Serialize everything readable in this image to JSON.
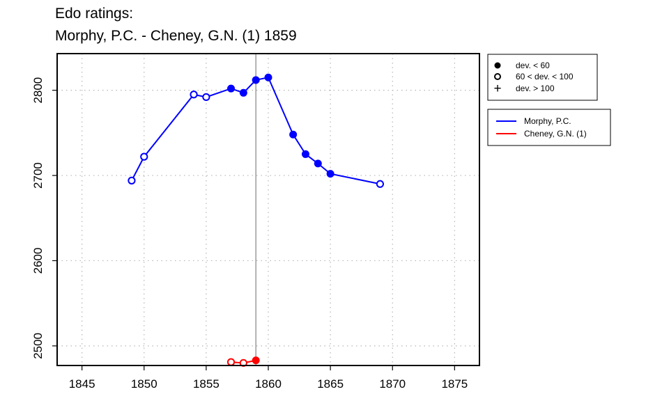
{
  "chart_data": {
    "type": "line",
    "title_lines": [
      "Edo ratings:",
      "Morphy, P.C. - Cheney, G.N. (1) 1859"
    ],
    "xlabel": "",
    "ylabel": "",
    "xlim": [
      1843,
      1877
    ],
    "ylim": [
      2477,
      2843
    ],
    "x_ticks": [
      1845,
      1850,
      1855,
      1860,
      1865,
      1870,
      1875
    ],
    "y_ticks": [
      2500,
      2600,
      2700,
      2800
    ],
    "grid": true,
    "reference_line_x": 1859,
    "series": [
      {
        "name": "Morphy, P.C.",
        "color": "#0000ff",
        "points": [
          {
            "x": 1849,
            "y": 2694,
            "marker": "open"
          },
          {
            "x": 1850,
            "y": 2722,
            "marker": "open"
          },
          {
            "x": 1854,
            "y": 2795,
            "marker": "open"
          },
          {
            "x": 1855,
            "y": 2792,
            "marker": "open"
          },
          {
            "x": 1857,
            "y": 2802,
            "marker": "filled"
          },
          {
            "x": 1858,
            "y": 2797,
            "marker": "filled"
          },
          {
            "x": 1859,
            "y": 2812,
            "marker": "filled"
          },
          {
            "x": 1860,
            "y": 2815,
            "marker": "filled"
          },
          {
            "x": 1862,
            "y": 2748,
            "marker": "filled"
          },
          {
            "x": 1863,
            "y": 2725,
            "marker": "filled"
          },
          {
            "x": 1864,
            "y": 2714,
            "marker": "filled"
          },
          {
            "x": 1865,
            "y": 2702,
            "marker": "filled"
          },
          {
            "x": 1869,
            "y": 2690,
            "marker": "open"
          }
        ]
      },
      {
        "name": "Cheney, G.N. (1)",
        "color": "#ff0000",
        "points": [
          {
            "x": 1857,
            "y": 2481,
            "marker": "open"
          },
          {
            "x": 1858,
            "y": 2480,
            "marker": "open"
          },
          {
            "x": 1859,
            "y": 2483,
            "marker": "filled"
          }
        ]
      }
    ],
    "marker_legend": [
      {
        "symbol": "filled",
        "label": "dev. < 60"
      },
      {
        "symbol": "open",
        "label": "60 < dev. < 100"
      },
      {
        "symbol": "plus",
        "label": "dev. > 100"
      }
    ],
    "legend_placement": "right"
  }
}
